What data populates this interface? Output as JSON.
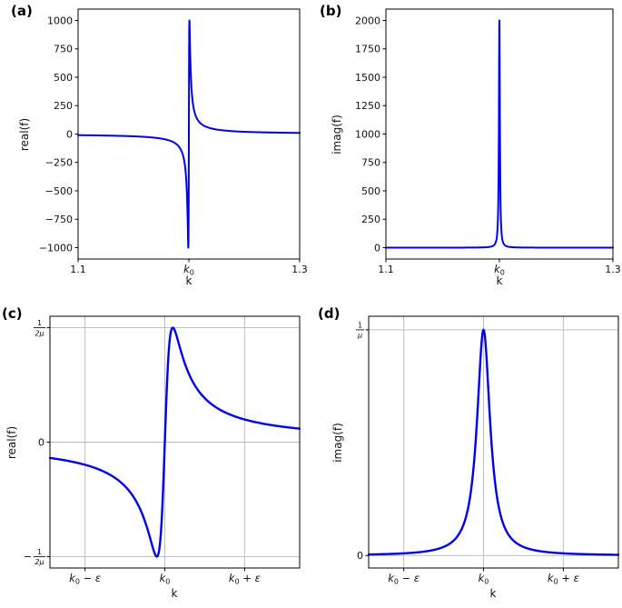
{
  "figure": {
    "background": "#ffffff",
    "curve_color": "#0000ee",
    "grid_color": "#b8b8b8",
    "description": "Four-panel figure of the real and imaginary parts of a Lorentzian resonance f(k)=1/((k-k0)-i*mu)"
  },
  "chart_data": [
    {
      "panel_label": "(a)",
      "type": "line",
      "xlabel": "k",
      "ylabel": "real(f)",
      "x_range": [
        1.1,
        1.3
      ],
      "y_range": [
        -1100,
        1100
      ],
      "grid": false,
      "x_ticks": [
        {
          "v": 1.1,
          "label": {
            "text": "1.1"
          }
        },
        {
          "v": 1.2,
          "label": {
            "math": "k0"
          }
        },
        {
          "v": 1.3,
          "label": {
            "text": "1.3"
          }
        }
      ],
      "y_ticks": [
        {
          "v": 1000,
          "label": {
            "text": "1000"
          }
        },
        {
          "v": 750,
          "label": {
            "text": "750"
          }
        },
        {
          "v": 500,
          "label": {
            "text": "500"
          }
        },
        {
          "v": 250,
          "label": {
            "text": "250"
          }
        },
        {
          "v": 0,
          "label": {
            "text": "0"
          }
        },
        {
          "v": -250,
          "label": {
            "text": "−250"
          }
        },
        {
          "v": -500,
          "label": {
            "text": "−500"
          }
        },
        {
          "v": -750,
          "label": {
            "text": "−750"
          }
        },
        {
          "v": -1000,
          "label": {
            "text": "−1000"
          }
        }
      ],
      "series": [
        {
          "name": "real(f)",
          "formula": "real(1/((k−k0)−iμ)) = (k−k0)/((k−k0)²+μ²)",
          "kind": "real",
          "k0": 1.2,
          "mu": 0.0005,
          "scale": 1,
          "peak_value": 1000,
          "trough_value": -1000,
          "color": "#0000ee",
          "linewidth": 2
        }
      ]
    },
    {
      "panel_label": "(b)",
      "type": "line",
      "xlabel": "k",
      "ylabel": "imag(f)",
      "x_range": [
        1.1,
        1.3
      ],
      "y_range": [
        -100,
        2100
      ],
      "grid": false,
      "x_ticks": [
        {
          "v": 1.1,
          "label": {
            "text": "1.1"
          }
        },
        {
          "v": 1.2,
          "label": {
            "math": "k0"
          }
        },
        {
          "v": 1.3,
          "label": {
            "text": "1.3"
          }
        }
      ],
      "y_ticks": [
        {
          "v": 2000,
          "label": {
            "text": "2000"
          }
        },
        {
          "v": 1750,
          "label": {
            "text": "1750"
          }
        },
        {
          "v": 1500,
          "label": {
            "text": "1500"
          }
        },
        {
          "v": 1250,
          "label": {
            "text": "1250"
          }
        },
        {
          "v": 1000,
          "label": {
            "text": "1000"
          }
        },
        {
          "v": 750,
          "label": {
            "text": "750"
          }
        },
        {
          "v": 500,
          "label": {
            "text": "500"
          }
        },
        {
          "v": 250,
          "label": {
            "text": "250"
          }
        },
        {
          "v": 0,
          "label": {
            "text": "0"
          }
        }
      ],
      "series": [
        {
          "name": "imag(f)",
          "formula": "imag(1/((k−k0)−iμ)) = μ/((k−k0)²+μ²)",
          "kind": "imag",
          "k0": 1.2,
          "mu": 0.0005,
          "scale": 1,
          "peak_value": 2000,
          "color": "#0000ee",
          "linewidth": 2
        }
      ]
    },
    {
      "panel_label": "(c)",
      "type": "line",
      "xlabel": "k",
      "ylabel": "real(f)",
      "x_units": "(k−k0)/ε",
      "x_range": [
        -1.44,
        1.69
      ],
      "y_range": [
        -1.1,
        1.1
      ],
      "grid": true,
      "x_ticks": [
        {
          "v": -1,
          "label": {
            "math": "k0-ε"
          }
        },
        {
          "v": 0,
          "label": {
            "math": "k0"
          }
        },
        {
          "v": 1,
          "label": {
            "math": "k0+ε"
          }
        }
      ],
      "y_ticks": [
        {
          "v": 1,
          "label": {
            "frac": {
              "num": "1",
              "den": "2μ",
              "sign": ""
            }
          }
        },
        {
          "v": 0,
          "label": {
            "text": "0"
          }
        },
        {
          "v": -1,
          "label": {
            "frac": {
              "num": "1",
              "den": "2μ",
              "sign": "−"
            }
          }
        }
      ],
      "series": [
        {
          "name": "real(f)",
          "formula": "real(f) normalized to 1/(2μ); peak +1/(2μ) at k0+μ, trough −1/(2μ) at k0−μ",
          "kind": "real",
          "k0": 0,
          "mu": 0.1,
          "scale": 0.2,
          "peak_value": "1/(2μ)",
          "trough_value": "−1/(2μ)",
          "color": "#0000ee",
          "linewidth": 2.4
        }
      ]
    },
    {
      "panel_label": "(d)",
      "type": "line",
      "xlabel": "k",
      "ylabel": "imag(f)",
      "x_units": "(k−k0)/ε",
      "x_range": [
        -1.44,
        1.69
      ],
      "y_range": [
        -0.055,
        1.06
      ],
      "grid": true,
      "x_ticks": [
        {
          "v": -1,
          "label": {
            "math": "k0-ε"
          }
        },
        {
          "v": 0,
          "label": {
            "math": "k0"
          }
        },
        {
          "v": 1,
          "label": {
            "math": "k0+ε"
          }
        }
      ],
      "y_ticks": [
        {
          "v": 1,
          "label": {
            "frac": {
              "num": "1",
              "den": "μ",
              "sign": ""
            }
          }
        },
        {
          "v": 0,
          "label": {
            "text": "0"
          }
        }
      ],
      "series": [
        {
          "name": "imag(f)",
          "formula": "imag(f) normalized to 1/μ; Lorentzian peak 1/μ at k0, half width μ",
          "kind": "imag",
          "k0": 0,
          "mu": 0.1,
          "scale": 0.1,
          "peak_value": "1/μ",
          "color": "#0000ee",
          "linewidth": 2.4
        }
      ]
    }
  ]
}
